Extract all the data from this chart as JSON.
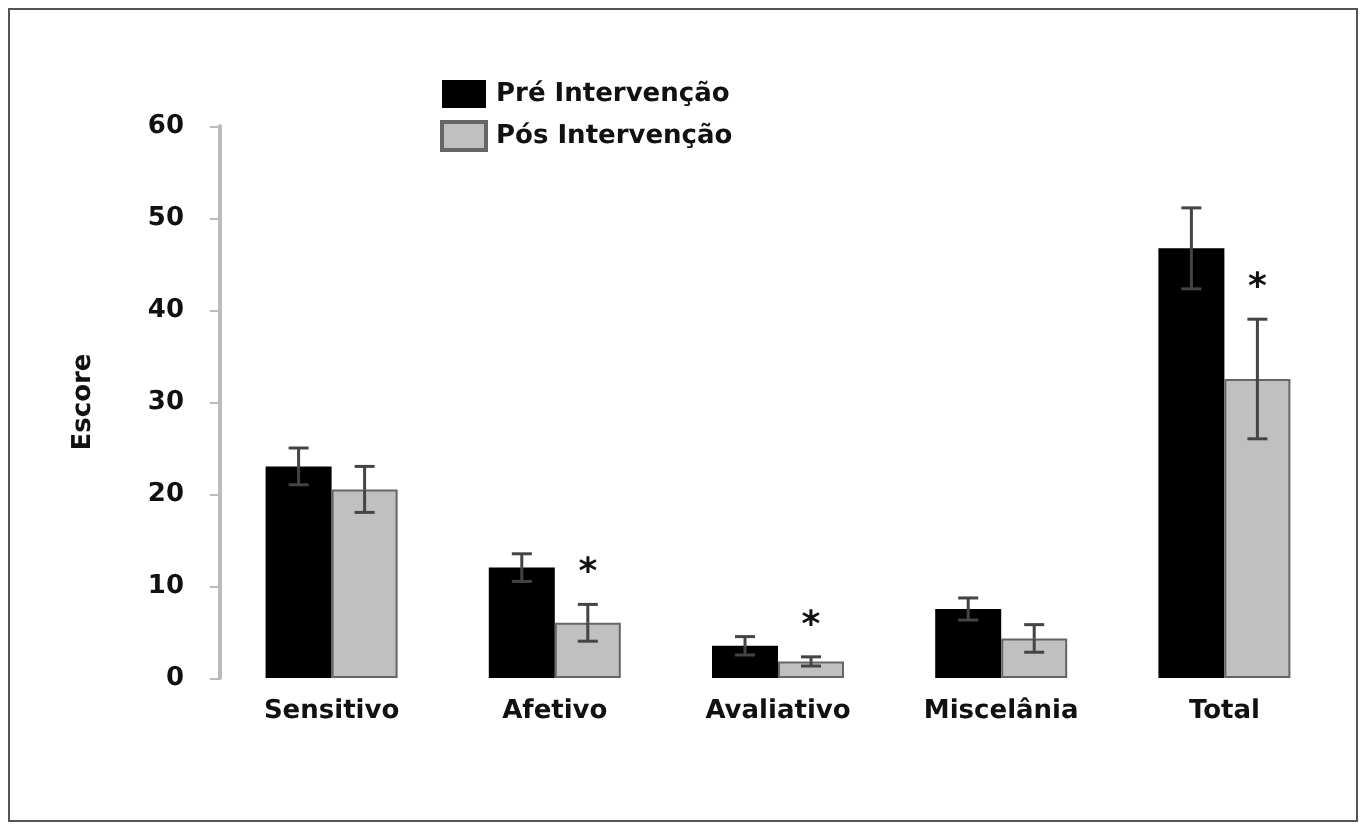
{
  "chart_data": {
    "type": "bar",
    "ylabel": "Escore",
    "categories": [
      "Sensitivo",
      "Afetivo",
      "Avaliativo",
      "Miscelânia",
      "Total"
    ],
    "series": [
      {
        "name": "Pré Intervenção",
        "color": "#000000",
        "values": [
          23,
          12,
          3.5,
          7.5,
          46.7
        ],
        "errors": [
          2,
          1.5,
          1,
          1.2,
          4.4
        ]
      },
      {
        "name": "Pós Intervenção",
        "color": "#c0c0c0",
        "values": [
          20.5,
          6,
          1.8,
          4.3,
          32.5
        ],
        "errors": [
          2.5,
          2,
          0.5,
          1.5,
          6.5
        ]
      }
    ],
    "annotations": [
      {
        "text": "*",
        "x": "Afetivo",
        "y": 8
      },
      {
        "text": "*",
        "x": "Avaliativo",
        "y": 2.3
      },
      {
        "text": "*",
        "x": "Total",
        "y": 39
      }
    ],
    "ylim": [
      0,
      60
    ],
    "yticks": [
      0,
      10,
      20,
      30,
      40,
      50,
      60
    ],
    "grid": false,
    "legend": "top"
  }
}
